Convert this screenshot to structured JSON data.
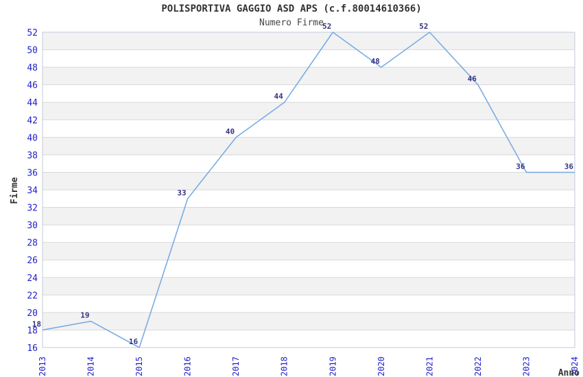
{
  "title": "POLISPORTIVA GAGGIO ASD APS (c.f.80014610366)",
  "subtitle": "Numero Firme",
  "chart_data": {
    "type": "line",
    "title": "POLISPORTIVA GAGGIO ASD APS (c.f.80014610366)",
    "subtitle": "Numero Firme",
    "xlabel": "Anno",
    "ylabel": "Firme",
    "categories": [
      "2013",
      "2014",
      "2015",
      "2016",
      "2017",
      "2018",
      "2019",
      "2020",
      "2021",
      "2022",
      "2023",
      "2024"
    ],
    "values": [
      18,
      19,
      16,
      33,
      40,
      44,
      52,
      48,
      52,
      46,
      36,
      36
    ],
    "point_labels": [
      "18",
      "19",
      "16",
      "33",
      "40",
      "44",
      "52",
      "48",
      "52",
      "46",
      "36",
      "36"
    ],
    "ylim": [
      16,
      52
    ],
    "ytick_step": 2,
    "grid": "horizontal-bands-alternating",
    "legend_position": "none",
    "colors": {
      "line": "#7aace2",
      "tick_label": "#2020cc",
      "point_label": "#333380",
      "band": "#f2f2f2",
      "gridline": "#d9d9d9",
      "plot_border": "#c2cad6",
      "title": "#333333",
      "axis_title": "#333333"
    }
  }
}
